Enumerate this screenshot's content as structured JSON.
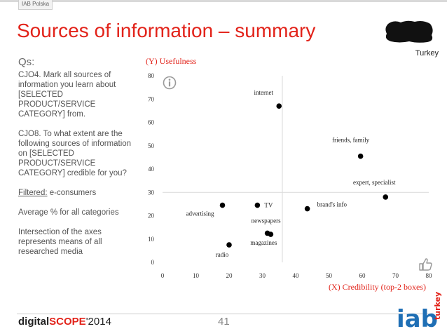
{
  "brand_tab": "IAB Polska",
  "title": "Sources of information – summary",
  "country": "Turkey",
  "questions": {
    "heading": "Qs:",
    "q1": "CJO4. Mark all sources of information you learn about [SELECTED PRODUCT/SERVICE CATEGORY] from.",
    "q2": "CJO8. To what extent are the following sources of information on [SELECTED PRODUCT/SERVICE CATEGORY] credible for you?",
    "filtered_label": "Filtered:",
    "filtered_value": " e-consumers",
    "average": "Average % for all categories",
    "intersection": "Intersection of the axes represents means of all researched media"
  },
  "chart_data": {
    "type": "scatter",
    "ylabel": "(Y) Usefulness",
    "xlabel": "(X) Credibility (top-2 boxes)",
    "xlim": [
      0,
      80
    ],
    "ylim": [
      0,
      80
    ],
    "xticks": [
      0,
      10,
      20,
      30,
      40,
      50,
      60,
      70,
      80
    ],
    "yticks": [
      0,
      10,
      20,
      30,
      40,
      50,
      60,
      70,
      80
    ],
    "mean_x": 36,
    "mean_y": 30,
    "points": [
      {
        "label": "internet",
        "x": 35,
        "y": 67
      },
      {
        "label": "friends, family",
        "x": 59.5,
        "y": 45.5
      },
      {
        "label": "expert, specialist",
        "x": 67,
        "y": 28
      },
      {
        "label": "brand's info",
        "x": 43.5,
        "y": 23
      },
      {
        "label": "advertising",
        "x": 18,
        "y": 24.5
      },
      {
        "label": "TV",
        "x": 28.5,
        "y": 24.5
      },
      {
        "label": "newspapers",
        "x": 31.5,
        "y": 12.5
      },
      {
        "label": "magazines",
        "x": 32.5,
        "y": 12
      },
      {
        "label": "radio",
        "x": 20,
        "y": 7.5
      }
    ],
    "grid": false,
    "point_color": "#000000",
    "axis_title_color": "#e2231a"
  },
  "footer": {
    "digital": "digital",
    "scope": "SCOPE",
    "year": "'2014",
    "page": "41",
    "logo_text": "iab",
    "logo_sub": "turkey"
  },
  "colors": {
    "accent": "#e2231a",
    "iab_blue": "#1f6fb5"
  }
}
